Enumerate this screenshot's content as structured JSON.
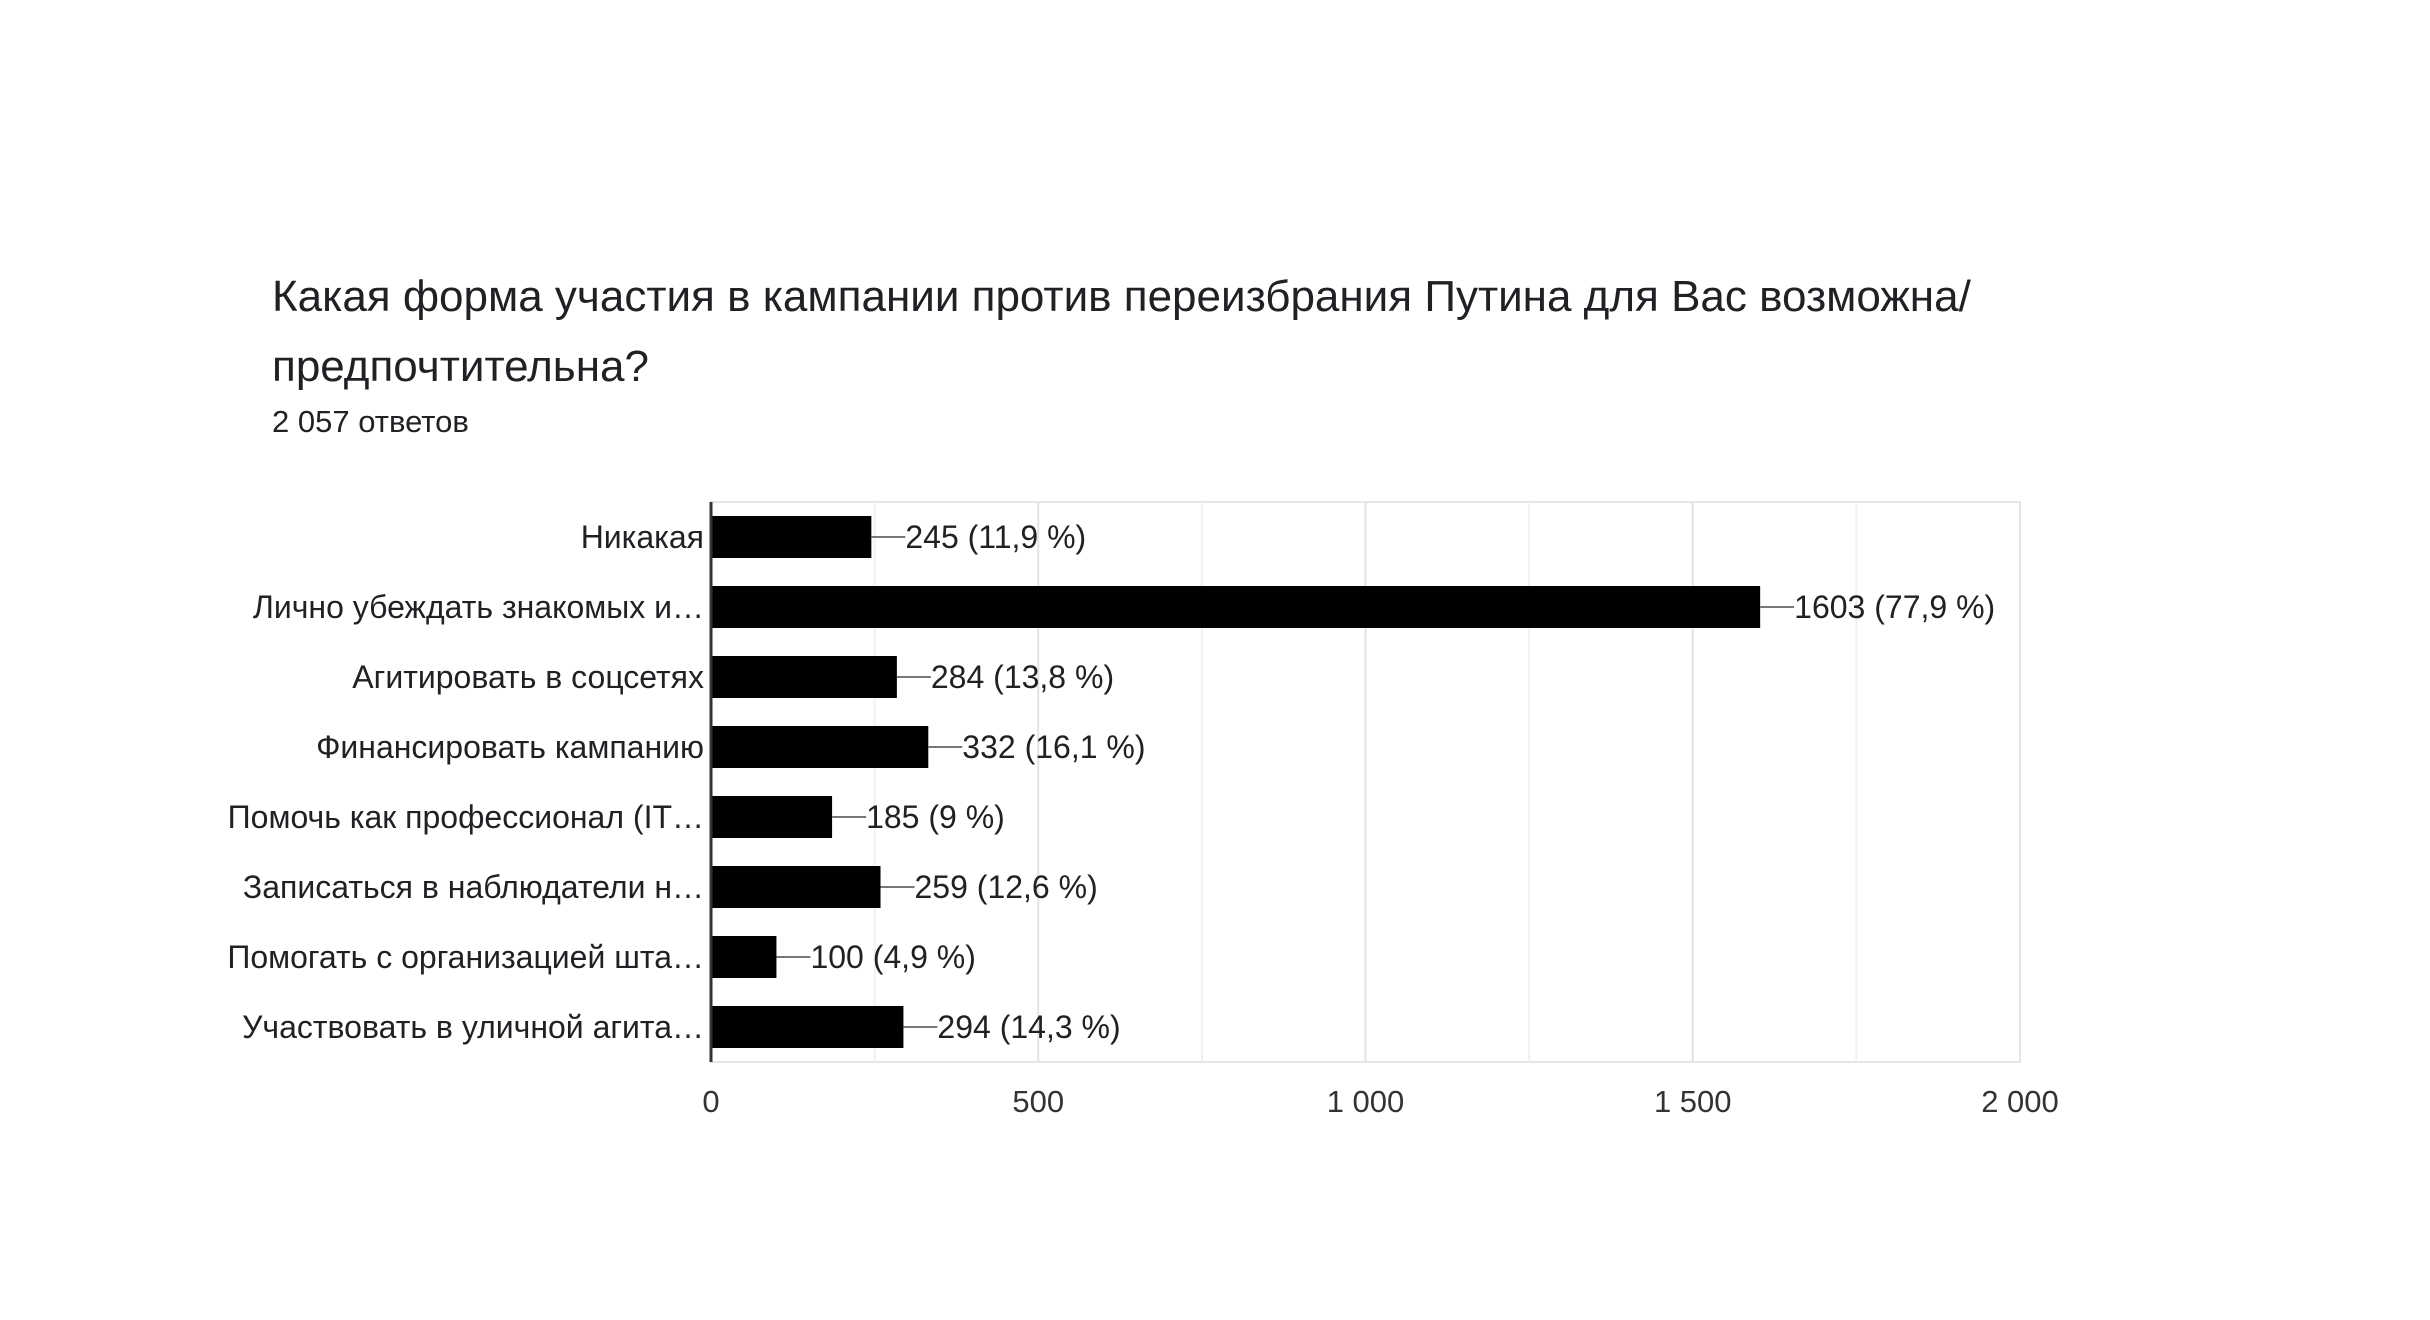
{
  "chart_data": {
    "type": "bar",
    "orientation": "horizontal",
    "title": "Какая форма участия в кампании против переизбрания Путина для Вас возможна/предпочтительна?",
    "subtitle": "2 057 ответов",
    "categories": [
      "Никакая",
      "Лично убеждать знакомых и…",
      "Агитировать в соцсетях",
      "Финансировать кампанию",
      "Помочь как профессионал (IT…",
      "Записаться в наблюдатели н…",
      "Помогать с организацией шта…",
      "Участвовать в уличной агита…"
    ],
    "values": [
      245,
      1603,
      284,
      332,
      185,
      259,
      100,
      294
    ],
    "value_labels": [
      "245 (11,9 %)",
      "1603 (77,9 %)",
      "284 (13,8 %)",
      "332 (16,1 %)",
      "185 (9 %)",
      "259 (12,6 %)",
      "100 (4,9 %)",
      "294 (14,3 %)"
    ],
    "xlim": [
      0,
      2000
    ],
    "x_ticks": [
      0,
      500,
      1000,
      1500,
      2000
    ],
    "x_tick_labels": [
      "0",
      "500",
      "1 000",
      "1 500",
      "2 000"
    ],
    "grid": true,
    "bar_color": "#000000"
  }
}
